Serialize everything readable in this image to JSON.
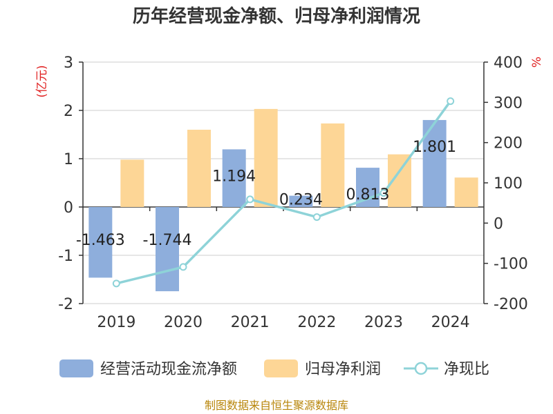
{
  "chart_data": {
    "type": "bar",
    "title": "历年经营现金净额、归母净利润情况",
    "categories": [
      "2019",
      "2020",
      "2021",
      "2022",
      "2023",
      "2024"
    ],
    "left_axis": {
      "unit": "(亿元)",
      "range": [
        -2,
        3
      ],
      "ticks": [
        "3",
        "2",
        "1",
        "0",
        "-1",
        "-2"
      ]
    },
    "right_axis": {
      "unit": "%",
      "range": [
        -200,
        400
      ],
      "ticks": [
        "400",
        "300",
        "200",
        "100",
        "0",
        "-100",
        "-200"
      ]
    },
    "series": [
      {
        "name": "经营活动现金流净额",
        "type": "bar",
        "axis": "left",
        "color": "#8eaedc",
        "values": [
          -1.463,
          -1.744,
          1.194,
          0.234,
          0.813,
          1.801
        ],
        "labels": [
          "-1.463",
          "-1.744",
          "1.194",
          "0.234",
          "0.813",
          "1.801"
        ]
      },
      {
        "name": "归母净利润",
        "type": "bar",
        "axis": "left",
        "color": "#fdd696",
        "values": [
          0.98,
          1.6,
          2.03,
          1.73,
          1.09,
          0.61
        ]
      },
      {
        "name": "净现比",
        "type": "line",
        "axis": "right",
        "color": "#8ed3d8",
        "values": [
          -150,
          -109,
          59,
          15,
          75,
          303
        ]
      }
    ],
    "grid": true,
    "legend_position": "bottom"
  },
  "source_text": "制图数据来自恒生聚源数据库",
  "colors": {
    "axis": "#333333",
    "grid": "#cccccc",
    "unit": "#e02020",
    "source": "#b8860b"
  }
}
